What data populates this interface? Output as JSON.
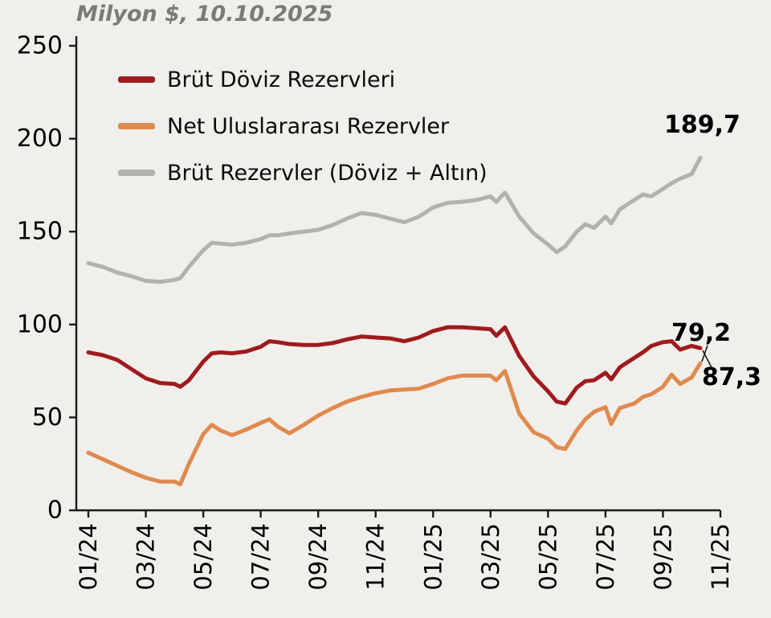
{
  "header": {
    "title": "Milyon $, 10.10.2025"
  },
  "annotations": {
    "total_end": "189,7",
    "net_end": "79,2",
    "gross_fx_end": "87,3"
  },
  "chart_data": {
    "type": "line",
    "title": "Milyon $, 10.10.2025",
    "unit": "Milyon $",
    "as_of_date": "10.10.2025",
    "xlabel": "",
    "ylabel": "",
    "ylim": [
      0,
      250
    ],
    "y_ticks": [
      0,
      50,
      100,
      150,
      200,
      250
    ],
    "grid": false,
    "legend_position": "top-left inside",
    "x_tick_labels": [
      "01/24",
      "03/24",
      "05/24",
      "07/24",
      "09/24",
      "11/24",
      "01/25",
      "03/25",
      "05/25",
      "07/25",
      "09/25",
      "11/25"
    ],
    "x_tick_positions_months": [
      0,
      2,
      4,
      6,
      8,
      10,
      12,
      14,
      16,
      18,
      20,
      22
    ],
    "x": [
      0,
      0.5,
      1,
      1.5,
      2,
      2.5,
      3,
      3.2,
      3.5,
      4,
      4.3,
      4.6,
      5,
      5.5,
      6,
      6.3,
      6.6,
      7,
      7.5,
      8,
      8.5,
      9,
      9.5,
      10,
      10.5,
      11,
      11.5,
      12,
      12.5,
      13,
      13.5,
      14,
      14.2,
      14.5,
      15,
      15.5,
      16,
      16.3,
      16.6,
      17,
      17.3,
      17.6,
      18,
      18.2,
      18.5,
      19,
      19.3,
      19.6,
      20,
      20.3,
      20.6,
      21,
      21.3
    ],
    "series": [
      {
        "name": "Brüt Döviz Rezervleri",
        "color": "#9e1b1e",
        "end_label": "87,3",
        "end_value": 87.3,
        "values": [
          85,
          83.5,
          81,
          76,
          71,
          68.5,
          68,
          66.5,
          70,
          80,
          84.5,
          85,
          84.5,
          85.5,
          88,
          91,
          90.5,
          89.5,
          89,
          89,
          90,
          92,
          93.5,
          93,
          92.5,
          91,
          93,
          96.5,
          98.5,
          98.5,
          98,
          97.5,
          94,
          98.5,
          83,
          72,
          64,
          58.5,
          57.5,
          66,
          69.5,
          70,
          74,
          70.5,
          77,
          82,
          85,
          88.5,
          90.5,
          91,
          86.5,
          88.5,
          87.3
        ]
      },
      {
        "name": "Net Uluslararası Rezervler",
        "color": "#e08a4f",
        "end_label": "79,2",
        "end_value": 79.2,
        "values": [
          31,
          27.5,
          24,
          20.5,
          17.5,
          15.5,
          15.5,
          14,
          25,
          41,
          46,
          43,
          40.5,
          43.5,
          47,
          49,
          45,
          41.5,
          46,
          51,
          55,
          58.5,
          61,
          63,
          64.5,
          65,
          65.5,
          68,
          71,
          72.5,
          72.5,
          72.5,
          70,
          75,
          52,
          42,
          38.5,
          34,
          33,
          43,
          49,
          53,
          55.5,
          46.5,
          55,
          57.5,
          61,
          62.5,
          66.5,
          73,
          68,
          71.5,
          79.2
        ]
      },
      {
        "name": "Brüt Rezervler (Döviz + Altın)",
        "color": "#b3b1ae",
        "end_label": "189,7",
        "end_value": 189.7,
        "values": [
          133,
          131,
          128,
          126,
          123.5,
          123,
          124,
          125,
          131,
          140,
          144,
          143.5,
          143,
          144,
          146,
          148,
          148,
          149,
          150,
          151,
          153.5,
          157,
          160,
          159,
          157,
          155,
          158,
          163,
          165.5,
          166,
          167,
          169,
          166,
          171,
          158,
          149,
          143,
          139,
          142,
          150,
          154,
          152,
          158,
          154.5,
          162,
          167,
          170,
          169,
          173,
          176,
          178.5,
          181,
          189.7
        ]
      }
    ]
  }
}
